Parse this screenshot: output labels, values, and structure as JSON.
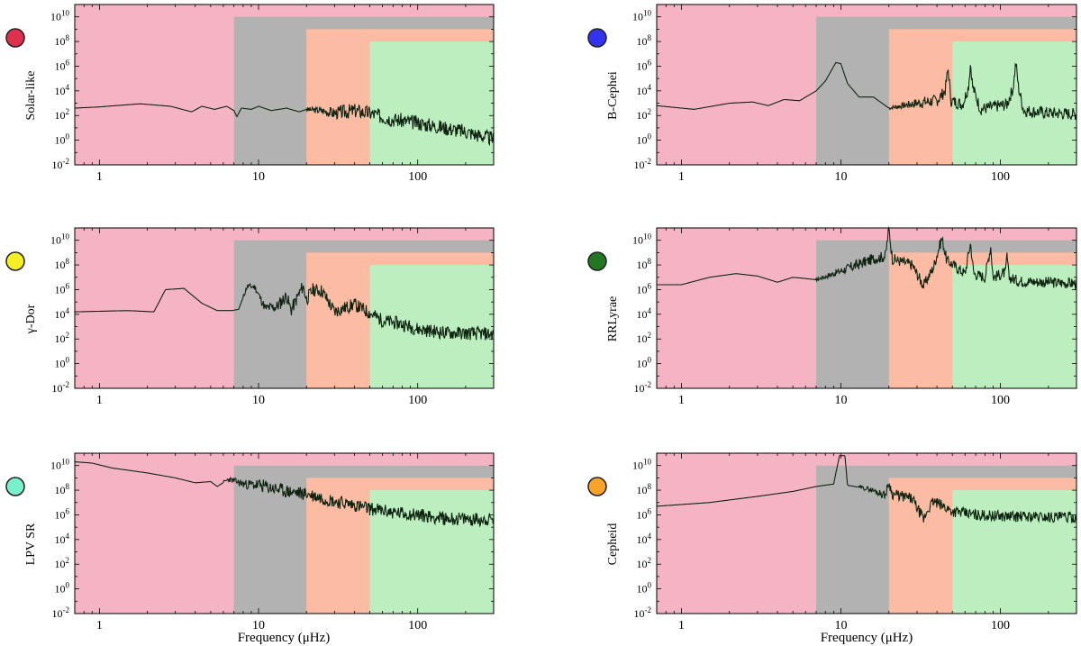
{
  "figure": {
    "xlabel": "Frequency (μHz)",
    "band_colors": {
      "pink": "#f4b4c4",
      "gray": "#b2b2b2",
      "salmon": "#fcbca4",
      "green": "#bceec0"
    },
    "trace_color": "#0f2410"
  },
  "chart_data": [
    {
      "type": "line",
      "label": "Solar-like",
      "marker_color": "#e0304f",
      "xscale": "log",
      "yscale": "log",
      "xlim": [
        0.7,
        300
      ],
      "ylim_exp": [
        -2,
        11
      ],
      "xticks": [
        1,
        10,
        100
      ],
      "ytick_exps": [
        -2,
        0,
        2,
        4,
        6,
        8,
        10
      ],
      "bands": [
        {
          "color": "gray",
          "x": [
            7,
            300
          ],
          "top_exp": 10
        },
        {
          "color": "salmon",
          "x": [
            20,
            300
          ],
          "top_exp": 9
        },
        {
          "color": "green",
          "x": [
            50,
            300
          ],
          "top_exp": 8
        }
      ],
      "points": [
        [
          0.7,
          2.6
        ],
        [
          1,
          2.7
        ],
        [
          1.8,
          2.95
        ],
        [
          2.8,
          2.75
        ],
        [
          3.8,
          2.3
        ],
        [
          4.4,
          2.75
        ],
        [
          5.3,
          2.5
        ],
        [
          6.3,
          2.75
        ],
        [
          7,
          2.4
        ],
        [
          7.3,
          1.9
        ],
        [
          7.8,
          2.6
        ],
        [
          9,
          2.5
        ],
        [
          10,
          2.75
        ],
        [
          12,
          2.4
        ],
        [
          15,
          2.6
        ],
        [
          18,
          2.3
        ],
        [
          20,
          2.5
        ],
        [
          25,
          2.4
        ],
        [
          30,
          2.2
        ],
        [
          40,
          2.4
        ],
        [
          50,
          2.2
        ],
        [
          60,
          1.9
        ],
        [
          70,
          1.7
        ],
        [
          100,
          1.4
        ],
        [
          150,
          1.0
        ],
        [
          200,
          0.7
        ],
        [
          300,
          0.1
        ]
      ],
      "noise": {
        "from": 20,
        "amp": 0.6,
        "density": 350,
        "seed": 3
      }
    },
    {
      "type": "line",
      "label": "B-Cephei",
      "marker_color": "#3333ee",
      "xscale": "log",
      "yscale": "log",
      "xlim": [
        0.7,
        300
      ],
      "ylim_exp": [
        -2,
        11
      ],
      "xticks": [
        1,
        10,
        100
      ],
      "ytick_exps": [
        -2,
        0,
        2,
        4,
        6,
        8,
        10
      ],
      "bands": [
        {
          "color": "gray",
          "x": [
            7,
            300
          ],
          "top_exp": 10
        },
        {
          "color": "salmon",
          "x": [
            20,
            300
          ],
          "top_exp": 9
        },
        {
          "color": "green",
          "x": [
            50,
            300
          ],
          "top_exp": 8
        }
      ],
      "points": [
        [
          0.7,
          2.8
        ],
        [
          1.2,
          2.5
        ],
        [
          2,
          3.0
        ],
        [
          2.8,
          3.1
        ],
        [
          3.5,
          2.8
        ],
        [
          4.4,
          3.3
        ],
        [
          5.5,
          3.2
        ],
        [
          7,
          4.0
        ],
        [
          8,
          4.8
        ],
        [
          9.3,
          6.3
        ],
        [
          10,
          6.2
        ],
        [
          11,
          4.6
        ],
        [
          13,
          3.5
        ],
        [
          16,
          3.5
        ],
        [
          20,
          2.6
        ],
        [
          30,
          3.0
        ],
        [
          40,
          3.2
        ],
        [
          45,
          4.0
        ],
        [
          47,
          5.8
        ],
        [
          49,
          3.2
        ],
        [
          58,
          2.9
        ],
        [
          63,
          4.3
        ],
        [
          65,
          6.3
        ],
        [
          67,
          4.3
        ],
        [
          75,
          2.5
        ],
        [
          110,
          2.9
        ],
        [
          120,
          4.2
        ],
        [
          125,
          6.3
        ],
        [
          130,
          4.2
        ],
        [
          140,
          2.4
        ],
        [
          200,
          2.2
        ],
        [
          300,
          2.1
        ]
      ],
      "noise": {
        "from": 20,
        "amp": 0.5,
        "density": 350,
        "seed": 7
      }
    },
    {
      "type": "line",
      "label": "γ-Dor",
      "marker_color": "#f5f024",
      "xscale": "log",
      "yscale": "log",
      "xlim": [
        0.7,
        300
      ],
      "ylim_exp": [
        -2,
        11
      ],
      "xticks": [
        1,
        10,
        100
      ],
      "ytick_exps": [
        -2,
        0,
        2,
        4,
        6,
        8,
        10
      ],
      "bands": [
        {
          "color": "gray",
          "x": [
            7,
            300
          ],
          "top_exp": 10
        },
        {
          "color": "salmon",
          "x": [
            20,
            300
          ],
          "top_exp": 9
        },
        {
          "color": "green",
          "x": [
            50,
            300
          ],
          "top_exp": 8
        }
      ],
      "points": [
        [
          0.7,
          4.2
        ],
        [
          1.5,
          4.3
        ],
        [
          2.2,
          4.2
        ],
        [
          2.6,
          6.0
        ],
        [
          3.4,
          6.1
        ],
        [
          4.4,
          4.9
        ],
        [
          5.5,
          4.3
        ],
        [
          6.8,
          4.3
        ],
        [
          7.5,
          4.4
        ],
        [
          8.5,
          6.3
        ],
        [
          9.5,
          6.2
        ],
        [
          11,
          4.5
        ],
        [
          13,
          4.6
        ],
        [
          15,
          5.5
        ],
        [
          16,
          4.3
        ],
        [
          19,
          6.3
        ],
        [
          20,
          5.2
        ],
        [
          22,
          6.0
        ],
        [
          25,
          5.9
        ],
        [
          30,
          4.2
        ],
        [
          40,
          4.8
        ],
        [
          50,
          4.1
        ],
        [
          60,
          3.5
        ],
        [
          80,
          3.2
        ],
        [
          100,
          2.8
        ],
        [
          150,
          2.5
        ],
        [
          300,
          2.4
        ]
      ],
      "noise": {
        "from": 8,
        "amp": 0.55,
        "density": 300,
        "seed": 11
      }
    },
    {
      "type": "line",
      "label": "RRLyrae",
      "marker_color": "#227722",
      "xscale": "log",
      "yscale": "log",
      "xlim": [
        0.7,
        300
      ],
      "ylim_exp": [
        -2,
        11
      ],
      "xticks": [
        1,
        10,
        100
      ],
      "ytick_exps": [
        -2,
        0,
        2,
        4,
        6,
        8,
        10
      ],
      "bands": [
        {
          "color": "gray",
          "x": [
            7,
            300
          ],
          "top_exp": 10
        },
        {
          "color": "salmon",
          "x": [
            20,
            300
          ],
          "top_exp": 9
        },
        {
          "color": "green",
          "x": [
            50,
            300
          ],
          "top_exp": 8
        }
      ],
      "points": [
        [
          0.7,
          6.4
        ],
        [
          1,
          6.4
        ],
        [
          1.5,
          7.0
        ],
        [
          2.2,
          7.3
        ],
        [
          3,
          7.1
        ],
        [
          4,
          6.6
        ],
        [
          5,
          7.0
        ],
        [
          6,
          6.9
        ],
        [
          7,
          6.8
        ],
        [
          9,
          7.3
        ],
        [
          12,
          7.9
        ],
        [
          16,
          8.5
        ],
        [
          19,
          8.7
        ],
        [
          20,
          11.0
        ],
        [
          21,
          8.5
        ],
        [
          28,
          8.0
        ],
        [
          33,
          6.3
        ],
        [
          38,
          7.8
        ],
        [
          43,
          10.2
        ],
        [
          46,
          8.4
        ],
        [
          60,
          7.3
        ],
        [
          65,
          9.8
        ],
        [
          68,
          7.3
        ],
        [
          80,
          7.0
        ],
        [
          87,
          9.5
        ],
        [
          90,
          7.0
        ],
        [
          108,
          7.4
        ],
        [
          110,
          8.9
        ],
        [
          113,
          7.0
        ],
        [
          130,
          6.7
        ],
        [
          200,
          6.6
        ],
        [
          300,
          6.5
        ]
      ],
      "noise": {
        "from": 7,
        "amp": 0.45,
        "density": 320,
        "seed": 17
      }
    },
    {
      "type": "line",
      "label": "LPV SR",
      "marker_color": "#78f0cc",
      "xscale": "log",
      "yscale": "log",
      "xlim": [
        0.7,
        300
      ],
      "ylim_exp": [
        -2,
        11
      ],
      "xticks": [
        1,
        10,
        100
      ],
      "ytick_exps": [
        -2,
        0,
        2,
        4,
        6,
        8,
        10
      ],
      "bands": [
        {
          "color": "gray",
          "x": [
            7,
            300
          ],
          "top_exp": 10
        },
        {
          "color": "salmon",
          "x": [
            20,
            300
          ],
          "top_exp": 9
        },
        {
          "color": "green",
          "x": [
            50,
            300
          ],
          "top_exp": 8
        }
      ],
      "points": [
        [
          0.7,
          10.3
        ],
        [
          0.9,
          10.2
        ],
        [
          1.2,
          9.8
        ],
        [
          2,
          9.4
        ],
        [
          3,
          9.0
        ],
        [
          4,
          8.6
        ],
        [
          5,
          8.7
        ],
        [
          5.5,
          8.3
        ],
        [
          6.5,
          8.9
        ],
        [
          8,
          8.5
        ],
        [
          10,
          8.4
        ],
        [
          15,
          7.9
        ],
        [
          20,
          7.7
        ],
        [
          30,
          7.1
        ],
        [
          40,
          6.8
        ],
        [
          50,
          6.5
        ],
        [
          70,
          6.2
        ],
        [
          100,
          6.0
        ],
        [
          150,
          5.7
        ],
        [
          300,
          5.6
        ]
      ],
      "noise": {
        "from": 6,
        "amp": 0.55,
        "density": 350,
        "seed": 23
      }
    },
    {
      "type": "line",
      "label": "Cepheid",
      "marker_color": "#f9a328",
      "xscale": "log",
      "yscale": "log",
      "xlim": [
        0.7,
        300
      ],
      "ylim_exp": [
        -2,
        11
      ],
      "xticks": [
        1,
        10,
        100
      ],
      "ytick_exps": [
        -2,
        0,
        2,
        4,
        6,
        8,
        10
      ],
      "bands": [
        {
          "color": "gray",
          "x": [
            7,
            300
          ],
          "top_exp": 10
        },
        {
          "color": "salmon",
          "x": [
            20,
            300
          ],
          "top_exp": 9
        },
        {
          "color": "green",
          "x": [
            50,
            300
          ],
          "top_exp": 8
        }
      ],
      "points": [
        [
          0.7,
          6.7
        ],
        [
          1.5,
          7.0
        ],
        [
          3,
          7.5
        ],
        [
          5,
          7.9
        ],
        [
          7,
          8.3
        ],
        [
          9,
          8.5
        ],
        [
          9.8,
          10.8
        ],
        [
          10.6,
          10.8
        ],
        [
          11,
          8.4
        ],
        [
          15,
          8.1
        ],
        [
          19,
          7.6
        ],
        [
          20,
          8.6
        ],
        [
          21,
          7.7
        ],
        [
          28,
          7.3
        ],
        [
          33,
          5.6
        ],
        [
          35,
          6.4
        ],
        [
          38,
          7.1
        ],
        [
          45,
          6.6
        ],
        [
          50,
          6.3
        ],
        [
          70,
          6.0
        ],
        [
          100,
          5.9
        ],
        [
          300,
          5.8
        ]
      ],
      "noise": {
        "from": 13,
        "amp": 0.45,
        "density": 330,
        "seed": 29
      }
    }
  ]
}
